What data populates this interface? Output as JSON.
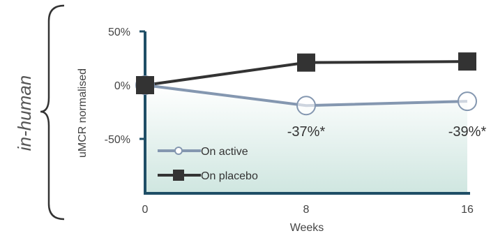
{
  "side_label": "in-human",
  "chart_data": {
    "type": "line",
    "x": [
      0,
      8,
      16
    ],
    "xlabel": "Weeks",
    "ylabel": "uMCR normalised",
    "x_tick_labels": [
      "0",
      "8",
      "16"
    ],
    "y_tick_labels": [
      "50%",
      "0%",
      "-50%"
    ],
    "y_ticks": [
      50,
      0,
      -50
    ],
    "ylim": [
      -100,
      50
    ],
    "xlim": [
      0,
      16
    ],
    "grid": false,
    "legend_position": "bottom-left",
    "series": [
      {
        "name": "On active",
        "values": [
          0,
          -19,
          -15
        ],
        "color": "#8497b0",
        "marker": "open-circle"
      },
      {
        "name": "On placebo",
        "values": [
          0,
          21,
          22
        ],
        "color": "#333333",
        "marker": "filled-square"
      }
    ],
    "annotations": [
      {
        "text": "-37%*",
        "x": 8
      },
      {
        "text": "-39%*",
        "x": 16
      }
    ],
    "axis_color": "#1f4e66",
    "fill_gradient": [
      "#ffffff",
      "#cfe6e0"
    ]
  }
}
